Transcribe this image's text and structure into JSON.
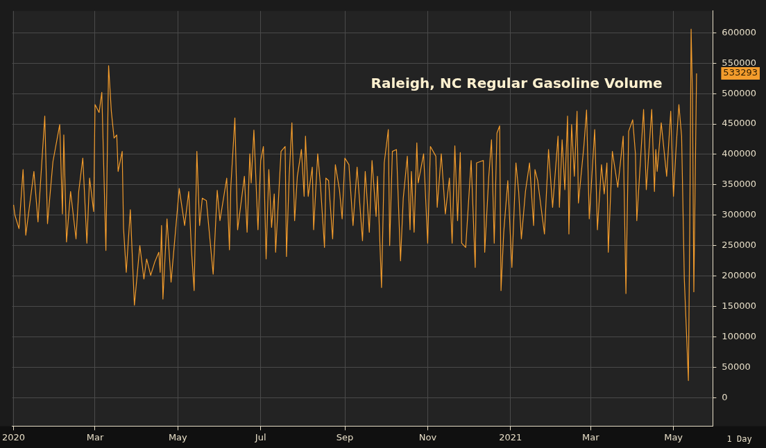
{
  "chart_data": {
    "type": "line",
    "title": "Raleigh, NC Regular Gasoline Volume",
    "grid": true,
    "xlim": [
      "2019-12-31",
      "2021-05-30"
    ],
    "xticks": [
      {
        "value": "2020-01-01",
        "label": "2020"
      },
      {
        "value": "2020-03-01",
        "label": "Mar"
      },
      {
        "value": "2020-05-01",
        "label": "May"
      },
      {
        "value": "2020-07-01",
        "label": "Jul"
      },
      {
        "value": "2020-09-01",
        "label": "Sep"
      },
      {
        "value": "2020-11-01",
        "label": "Nov"
      },
      {
        "value": "2021-01-01",
        "label": "2021"
      },
      {
        "value": "2021-03-01",
        "label": "Mar"
      },
      {
        "value": "2021-05-01",
        "label": "May"
      }
    ],
    "ylim": [
      -47000,
      636000
    ],
    "yticks": [
      0,
      50000,
      100000,
      150000,
      200000,
      250000,
      300000,
      350000,
      400000,
      450000,
      500000,
      550000,
      600000
    ],
    "annotations": [
      "533293",
      "1 Day"
    ],
    "series": [
      {
        "color": "#f39c2c",
        "x": [
          "2020-01-01",
          "2020-01-02",
          "2020-01-05",
          "2020-01-08",
          "2020-01-10",
          "2020-01-16",
          "2020-01-19",
          "2020-01-24",
          "2020-01-26",
          "2020-01-30",
          "2020-02-04",
          "2020-02-06",
          "2020-02-07",
          "2020-02-09",
          "2020-02-12",
          "2020-02-16",
          "2020-02-18",
          "2020-02-21",
          "2020-02-24",
          "2020-02-26",
          "2020-02-29",
          "2020-03-01",
          "2020-03-04",
          "2020-03-06",
          "2020-03-09",
          "2020-03-11",
          "2020-03-13",
          "2020-03-15",
          "2020-03-17",
          "2020-03-18",
          "2020-03-21",
          "2020-03-22",
          "2020-03-24",
          "2020-03-27",
          "2020-03-30",
          "2020-04-03",
          "2020-04-06",
          "2020-04-08",
          "2020-04-11",
          "2020-04-14",
          "2020-04-17",
          "2020-04-18",
          "2020-04-19",
          "2020-04-20",
          "2020-04-23",
          "2020-04-26",
          "2020-05-02",
          "2020-05-06",
          "2020-05-09",
          "2020-05-11",
          "2020-05-13",
          "2020-05-15",
          "2020-05-17",
          "2020-05-19",
          "2020-05-22",
          "2020-05-27",
          "2020-05-30",
          "2020-06-01",
          "2020-06-06",
          "2020-06-08",
          "2020-06-09",
          "2020-06-12",
          "2020-06-14",
          "2020-06-17",
          "2020-06-19",
          "2020-06-21",
          "2020-06-23",
          "2020-06-24",
          "2020-06-26",
          "2020-06-29",
          "2020-07-01",
          "2020-07-03",
          "2020-07-05",
          "2020-07-07",
          "2020-07-09",
          "2020-07-11",
          "2020-07-12",
          "2020-07-16",
          "2020-07-19",
          "2020-07-20",
          "2020-07-22",
          "2020-07-24",
          "2020-07-26",
          "2020-07-28",
          "2020-07-31",
          "2020-08-02",
          "2020-08-03",
          "2020-08-05",
          "2020-08-08",
          "2020-08-09",
          "2020-08-12",
          "2020-08-14",
          "2020-08-17",
          "2020-08-18",
          "2020-08-20",
          "2020-08-23",
          "2020-08-25",
          "2020-08-28",
          "2020-08-30",
          "2020-09-01",
          "2020-09-04",
          "2020-09-07",
          "2020-09-10",
          "2020-09-14",
          "2020-09-16",
          "2020-09-19",
          "2020-09-21",
          "2020-09-24",
          "2020-09-25",
          "2020-09-28",
          "2020-09-30",
          "2020-10-03",
          "2020-10-04",
          "2020-10-06",
          "2020-10-09",
          "2020-10-12",
          "2020-10-14",
          "2020-10-17",
          "2020-10-19",
          "2020-10-20",
          "2020-10-22",
          "2020-10-24",
          "2020-10-25",
          "2020-10-29",
          "2020-11-01",
          "2020-11-03",
          "2020-11-07",
          "2020-11-08",
          "2020-11-11",
          "2020-11-14",
          "2020-11-17",
          "2020-11-19",
          "2020-11-21",
          "2020-11-23",
          "2020-11-25",
          "2020-11-26",
          "2020-11-29",
          "2020-12-03",
          "2020-12-06",
          "2020-12-07",
          "2020-12-12",
          "2020-12-13",
          "2020-12-16",
          "2020-12-18",
          "2020-12-20",
          "2020-12-22",
          "2020-12-24",
          "2020-12-25",
          "2020-12-27",
          "2020-12-30",
          "2021-01-02",
          "2021-01-05",
          "2021-01-07",
          "2021-01-09",
          "2021-01-12",
          "2021-01-15",
          "2021-01-18",
          "2021-01-19",
          "2021-01-21",
          "2021-01-26",
          "2021-01-29",
          "2021-02-01",
          "2021-02-05",
          "2021-02-06",
          "2021-02-08",
          "2021-02-10",
          "2021-02-12",
          "2021-02-13",
          "2021-02-15",
          "2021-02-17",
          "2021-02-19",
          "2021-02-20",
          "2021-02-24",
          "2021-02-26",
          "2021-02-28",
          "2021-03-04",
          "2021-03-06",
          "2021-03-09",
          "2021-03-11",
          "2021-03-13",
          "2021-03-14",
          "2021-03-17",
          "2021-03-21",
          "2021-03-25",
          "2021-03-27",
          "2021-03-29",
          "2021-04-01",
          "2021-04-03",
          "2021-04-04",
          "2021-04-09",
          "2021-04-11",
          "2021-04-15",
          "2021-04-17",
          "2021-04-18",
          "2021-04-19",
          "2021-04-22",
          "2021-04-26",
          "2021-04-29",
          "2021-05-01",
          "2021-05-03",
          "2021-05-05",
          "2021-05-07",
          "2021-05-09",
          "2021-05-12",
          "2021-05-13",
          "2021-05-14",
          "2021-05-15",
          "2021-05-16",
          "2021-05-18"
        ],
        "values": [
          317000,
          300000,
          278000,
          375000,
          267000,
          372000,
          289000,
          463000,
          286000,
          388000,
          449000,
          302000,
          432000,
          256000,
          339000,
          261000,
          339000,
          394000,
          254000,
          361000,
          306000,
          482000,
          469000,
          502000,
          242000,
          546000,
          471000,
          427000,
          432000,
          372000,
          405000,
          278000,
          206000,
          309000,
          152000,
          250000,
          195000,
          228000,
          201000,
          223000,
          239000,
          206000,
          283000,
          162000,
          294000,
          190000,
          344000,
          283000,
          339000,
          243000,
          176000,
          405000,
          283000,
          328000,
          324000,
          203000,
          341000,
          291000,
          361000,
          243000,
          346000,
          460000,
          276000,
          328000,
          364000,
          272000,
          401000,
          353000,
          440000,
          276000,
          390000,
          413000,
          228000,
          375000,
          280000,
          335000,
          239000,
          405000,
          413000,
          232000,
          364000,
          452000,
          291000,
          364000,
          408000,
          331000,
          430000,
          331000,
          379000,
          276000,
          401000,
          350000,
          247000,
          361000,
          357000,
          261000,
          383000,
          342000,
          294000,
          394000,
          383000,
          283000,
          379000,
          258000,
          372000,
          272000,
          390000,
          298000,
          364000,
          181000,
          386000,
          441000,
          250000,
          405000,
          408000,
          225000,
          328000,
          397000,
          276000,
          372000,
          272000,
          419000,
          353000,
          401000,
          254000,
          413000,
          397000,
          313000,
          401000,
          302000,
          361000,
          254000,
          414000,
          291000,
          403000,
          254000,
          247000,
          390000,
          214000,
          386000,
          390000,
          239000,
          364000,
          424000,
          254000,
          435000,
          447000,
          176000,
          272000,
          357000,
          214000,
          386000,
          339000,
          261000,
          339000,
          386000,
          283000,
          375000,
          357000,
          269000,
          408000,
          313000,
          430000,
          313000,
          424000,
          342000,
          463000,
          269000,
          449000,
          364000,
          471000,
          320000,
          413000,
          473000,
          294000,
          441000,
          276000,
          383000,
          335000,
          386000,
          239000,
          405000,
          346000,
          430000,
          171000,
          438000,
          457000,
          401000,
          291000,
          474000,
          342000,
          474000,
          339000,
          408000,
          372000,
          452000,
          364000,
          471000,
          331000,
          413000,
          482000,
          430000,
          195000,
          28000,
          276000,
          606000,
          499000,
          174000,
          533293
        ]
      }
    ]
  }
}
